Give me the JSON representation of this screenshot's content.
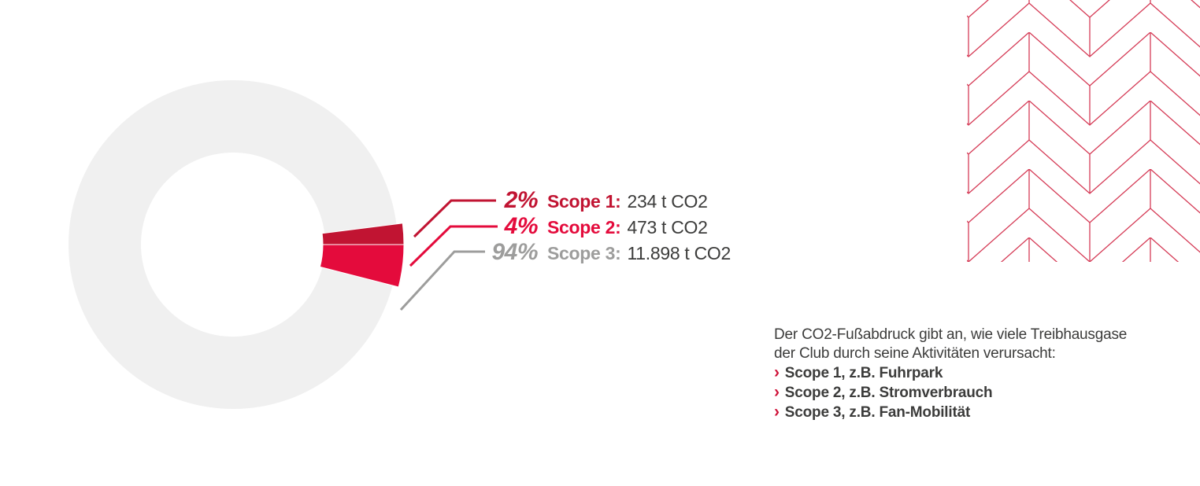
{
  "colors": {
    "background": "#ffffff",
    "scope1-red": "#c11432",
    "scope2-red": "#e40b3c",
    "scope3-gray": "#9d9d9c",
    "ring-gray": "#f0f0f0",
    "text-dark": "#3c3c3b",
    "bullet-red": "#cf1238",
    "pattern-red": "#d53b56"
  },
  "chart_data": {
    "type": "pie",
    "subtype": "donut",
    "title": "",
    "legend_position": "right",
    "start_angle_deg": -7.2,
    "slices": [
      {
        "label": "Scope 1",
        "percent": 2,
        "percent_label": "2%",
        "value_t_co2": 234,
        "value_label": "234 t CO2",
        "color_key": "scope1-red"
      },
      {
        "label": "Scope 2",
        "percent": 4,
        "percent_label": "4%",
        "value_t_co2": 473,
        "value_label": "473 t CO2",
        "color_key": "scope2-red"
      },
      {
        "label": "Scope 3",
        "percent": 94,
        "percent_label": "94%",
        "value_t_co2": 11898,
        "value_label": "11.898 t CO2",
        "color_key": "ring-gray"
      }
    ]
  },
  "legend": {
    "rows": [
      {
        "percent": "2%",
        "label": "Scope 1:",
        "value": "234 t CO2"
      },
      {
        "percent": "4%",
        "label": "Scope 2:",
        "value": "473 t CO2"
      },
      {
        "percent": "94%",
        "label": "Scope 3:",
        "value": "11.898 t CO2"
      }
    ]
  },
  "description": {
    "lines": [
      "Der CO2-Fußabdruck gibt an, wie viele Treibhausgase",
      "der Club durch seine Aktivitäten verursacht:"
    ],
    "bullet_glyph": "›",
    "bullets": [
      "Scope 1, z.B. Fuhrpark",
      "Scope 2, z.B. Stromverbrauch",
      "Scope 3, z.B. Fan-Mobilität"
    ]
  }
}
